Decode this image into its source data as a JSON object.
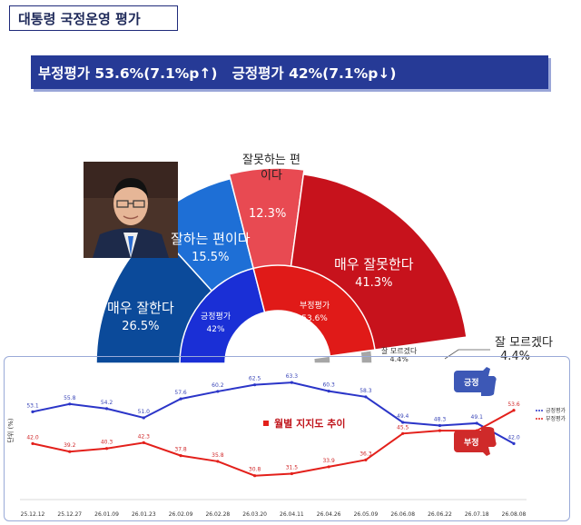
{
  "header": {
    "title": "대통령 국정운영 평가",
    "banner": "부정평가 53.6%(7.1%p↑)   긍정평가 42%(7.1%p↓)"
  },
  "colors": {
    "very_good": "#0b4a9a",
    "good": "#1e6fd6",
    "bad": "#e84a52",
    "very_bad": "#c7121c",
    "dont_know": "#a6a6a6",
    "positive_inner": "#1a2fd6",
    "negative_inner": "#e01a18",
    "banner_bg": "#263a96",
    "line_pos": "#2b35c8",
    "line_neg": "#e3201b"
  },
  "chart_data": [
    {
      "type": "pie",
      "subtype": "semicircle-donut",
      "outer": {
        "labels": [
          "매우 잘한다",
          "잘하는 편이다",
          "잘못하는 편이다",
          "매우 잘못한다",
          "잘 모르겠다"
        ],
        "values": [
          26.5,
          15.5,
          12.3,
          41.3,
          4.4
        ],
        "value_labels": [
          "26.5%",
          "15.5%",
          "12.3%",
          "41.3%",
          "4.4%"
        ]
      },
      "inner": {
        "labels": [
          "긍정평가",
          "부정평가",
          "잘 모르겠다"
        ],
        "values": [
          42.0,
          53.6,
          4.4
        ],
        "value_labels": [
          "42%",
          "53.6%",
          "4.4%"
        ]
      },
      "callout": {
        "label": "잘 모르겠다",
        "value": "4.4%"
      }
    },
    {
      "type": "line",
      "title": "월별 지지도 추이",
      "ylabel": "단위 (%)",
      "x": [
        "25.12.12",
        "25.12.27",
        "26.01.09",
        "26.01.23",
        "26.02.09",
        "26.02.28",
        "26.03.20",
        "26.04.11",
        "26.04.26",
        "26.05.09",
        "26.06.08",
        "26.06.22",
        "26.07.18",
        "26.08.08"
      ],
      "series": [
        {
          "name": "긍정평가",
          "values": [
            53.1,
            55.8,
            54.2,
            51.0,
            57.6,
            60.2,
            62.5,
            63.3,
            60.3,
            58.3,
            49.4,
            48.3,
            49.1,
            42.0
          ]
        },
        {
          "name": "부정평가",
          "values": [
            42.0,
            39.2,
            40.3,
            42.3,
            37.8,
            35.8,
            30.8,
            31.5,
            33.9,
            36.3,
            45.5,
            46.5,
            46.5,
            53.6
          ]
        }
      ],
      "value_labels_pos": [
        "53.1",
        "55.8",
        "54.2",
        "51.0",
        "57.6",
        "60.2",
        "62.5",
        "63.3",
        "60.3",
        "58.3",
        "49.4",
        "48.3",
        "49.1",
        "42.0"
      ],
      "value_labels_neg": [
        "42.0",
        "39.2",
        "40.3",
        "42.3",
        "37.8",
        "35.8",
        "30.8",
        "31.5",
        "33.9",
        "36.3",
        "45.5",
        "",
        "",
        "53.6"
      ],
      "legend": [
        "긍정평가",
        "부정평가"
      ],
      "legend_position": "right",
      "thumb_labels": {
        "up": "긍정",
        "down": "부정"
      },
      "ylim": [
        25,
        70
      ]
    }
  ]
}
